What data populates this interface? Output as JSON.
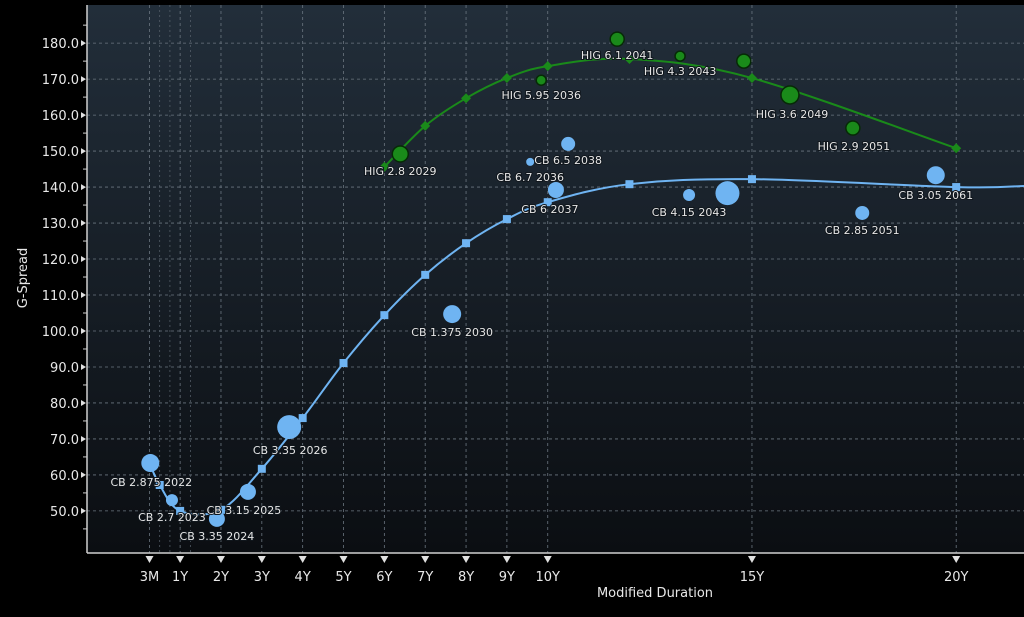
{
  "chart_data": {
    "type": "scatter",
    "title": "",
    "xlabel": "Modified Duration",
    "ylabel": "G-Spread",
    "xlim": [
      -1.28,
      21.66
    ],
    "ylim": [
      38.3,
      190.6
    ],
    "grid": true,
    "x_ticks": [
      {
        "value": 0.25,
        "label": "3M"
      },
      {
        "value": 1,
        "label": "1Y"
      },
      {
        "value": 2,
        "label": "2Y"
      },
      {
        "value": 3,
        "label": "3Y"
      },
      {
        "value": 4,
        "label": "4Y"
      },
      {
        "value": 5,
        "label": "5Y"
      },
      {
        "value": 6,
        "label": "6Y"
      },
      {
        "value": 7,
        "label": "7Y"
      },
      {
        "value": 8,
        "label": "8Y"
      },
      {
        "value": 9,
        "label": "9Y"
      },
      {
        "value": 10,
        "label": "10Y"
      },
      {
        "value": 15,
        "label": "15Y"
      },
      {
        "value": 20,
        "label": "20Y"
      }
    ],
    "y_ticks": [
      {
        "value": 50,
        "label": "50.0"
      },
      {
        "value": 60,
        "label": "60.0"
      },
      {
        "value": 70,
        "label": "70.0"
      },
      {
        "value": 80,
        "label": "80.0"
      },
      {
        "value": 90,
        "label": "90.0"
      },
      {
        "value": 100,
        "label": "100.0"
      },
      {
        "value": 110,
        "label": "110.0"
      },
      {
        "value": 120,
        "label": "120.0"
      },
      {
        "value": 130,
        "label": "130.0"
      },
      {
        "value": 140,
        "label": "140.0"
      },
      {
        "value": 150,
        "label": "150.0"
      },
      {
        "value": 160,
        "label": "160.0"
      },
      {
        "value": 170,
        "label": "170.0"
      },
      {
        "value": 180,
        "label": "180.0"
      }
    ],
    "series": [
      {
        "name": "CB",
        "color": "#6fb4f2",
        "curve": [
          [
            0.25,
            63.3
          ],
          [
            0.5,
            57.2
          ],
          [
            1,
            50
          ],
          [
            2,
            50.3
          ],
          [
            3,
            61.7
          ],
          [
            4,
            75.8
          ],
          [
            5,
            91.1
          ],
          [
            6,
            104.4
          ],
          [
            7,
            115.6
          ],
          [
            8,
            124.4
          ],
          [
            9,
            131.1
          ],
          [
            10,
            135.8
          ],
          [
            12,
            140.8
          ],
          [
            15,
            142.2
          ],
          [
            20,
            140
          ],
          [
            21.66,
            140.3
          ]
        ],
        "curve_markers": [
          [
            0.5,
            57.2
          ],
          [
            1,
            50
          ],
          [
            2,
            50.3
          ],
          [
            3,
            61.7
          ],
          [
            4,
            75.8
          ],
          [
            5,
            91.1
          ],
          [
            6,
            104.4
          ],
          [
            7,
            115.6
          ],
          [
            8,
            124.4
          ],
          [
            9,
            131.1
          ],
          [
            10,
            135.8
          ],
          [
            12,
            140.8
          ],
          [
            15,
            142.2
          ],
          [
            20,
            140
          ]
        ],
        "bonds": [
          {
            "label": "CB 2.875 2022",
            "x": 0.27,
            "y": 63.3,
            "size": 9
          },
          {
            "label": "CB 2.7 2023",
            "x": 0.8,
            "y": 53,
            "size": 6
          },
          {
            "label": "CB 3.35 2024",
            "x": 1.9,
            "y": 47.8,
            "size": 8
          },
          {
            "label": "CB 3.15 2025",
            "x": 2.66,
            "y": 55.3,
            "size": 8
          },
          {
            "label": "CB 3.35 2026",
            "x": 3.67,
            "y": 73.3,
            "size": 12
          },
          {
            "label": "CB 1.375 2030",
            "x": 7.66,
            "y": 104.7,
            "size": 9
          },
          {
            "label": "CB 6.7 2036",
            "x": 9.57,
            "y": 147,
            "size": 4
          },
          {
            "label": "CB 6.5 2038",
            "x": 10.5,
            "y": 152,
            "size": 7
          },
          {
            "label": "CB 6 2037",
            "x": 10.2,
            "y": 139.2,
            "size": 8
          },
          {
            "label": "CB 4.15 2043",
            "x": 13.46,
            "y": 137.8,
            "size": 6
          },
          {
            "label": null,
            "x": 14.4,
            "y": 138.3,
            "size": 12
          },
          {
            "label": "CB 2.85 2051",
            "x": 17.7,
            "y": 132.8,
            "size": 7
          },
          {
            "label": "CB 3.05 2061",
            "x": 19.5,
            "y": 143.3,
            "size": 9
          }
        ]
      },
      {
        "name": "HIG",
        "color": "#1a8a1a",
        "curve": [
          [
            6,
            145.6
          ],
          [
            7,
            157
          ],
          [
            8,
            164.7
          ],
          [
            9,
            170.3
          ],
          [
            10,
            173.6
          ],
          [
            12,
            175.6
          ],
          [
            15,
            170.3
          ],
          [
            20,
            150.8
          ]
        ],
        "curve_markers": [
          [
            6,
            145.6
          ],
          [
            7,
            157
          ],
          [
            8,
            164.7
          ],
          [
            9,
            170.3
          ],
          [
            10,
            173.6
          ],
          [
            12,
            175.6
          ],
          [
            15,
            170.3
          ],
          [
            20,
            150.8
          ]
        ],
        "bonds": [
          {
            "label": "HIG 2.8 2029",
            "x": 6.39,
            "y": 149.2,
            "size": 8
          },
          {
            "label": "HIG 5.95 2036",
            "x": 9.84,
            "y": 169.7,
            "size": 5
          },
          {
            "label": "HIG 6.1 2041",
            "x": 11.7,
            "y": 181.1,
            "size": 7
          },
          {
            "label": "HIG 4.3 2043",
            "x": 13.24,
            "y": 176.4,
            "size": 5
          },
          {
            "label": null,
            "x": 14.8,
            "y": 175,
            "size": 7
          },
          {
            "label": "HIG 3.6 2049",
            "x": 15.93,
            "y": 165.6,
            "size": 9
          },
          {
            "label": "HIG 2.9 2051",
            "x": 17.47,
            "y": 156.4,
            "size": 7
          }
        ]
      }
    ]
  }
}
